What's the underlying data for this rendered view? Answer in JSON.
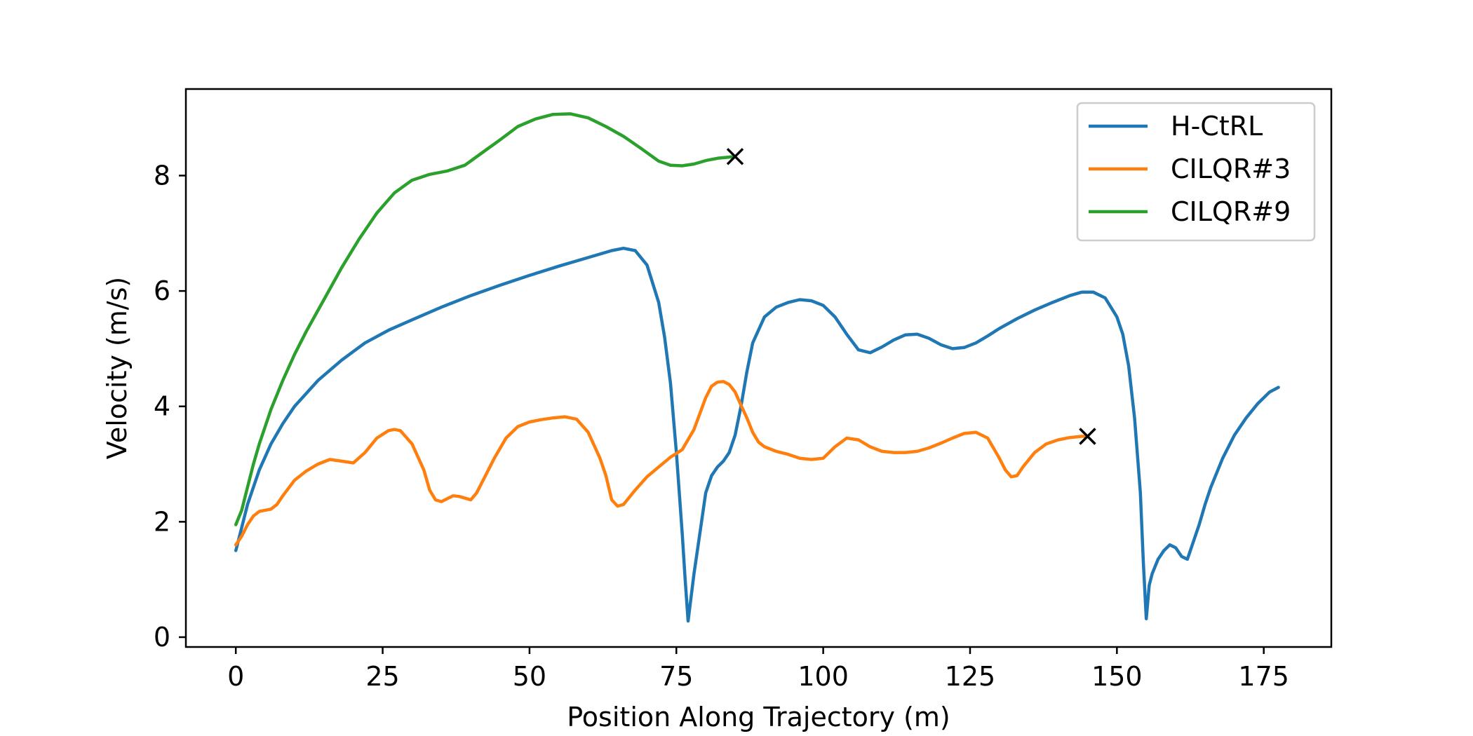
{
  "chart_data": {
    "type": "line",
    "title": "",
    "xlabel": "Position Along Trajectory (m)",
    "ylabel": "Velocity (m/s)",
    "xlim": [
      -8.5,
      186.5
    ],
    "ylim": [
      -0.17,
      9.5
    ],
    "xticks": [
      0,
      25,
      50,
      75,
      100,
      125,
      150,
      175
    ],
    "xtick_labels": [
      "0",
      "25",
      "50",
      "75",
      "100",
      "125",
      "150",
      "175"
    ],
    "yticks": [
      0,
      2,
      4,
      6,
      8
    ],
    "ytick_labels": [
      "0",
      "2",
      "4",
      "6",
      "8"
    ],
    "grid": false,
    "legend_position": "top-right",
    "series": [
      {
        "name": "H-CtRL",
        "color": "#1f77b4",
        "x": [
          0,
          1,
          2,
          4,
          6,
          8,
          10,
          14,
          18,
          22,
          26,
          30,
          35,
          40,
          45,
          50,
          55,
          60,
          64,
          66,
          68,
          70,
          72,
          73,
          74,
          75,
          76,
          76.5,
          77,
          78,
          79,
          80,
          81,
          82,
          83,
          84,
          85,
          86,
          87,
          88,
          90,
          92,
          94,
          96,
          98,
          100,
          102,
          104,
          106,
          108,
          110,
          112,
          114,
          116,
          118,
          120,
          122,
          124,
          126,
          128,
          130,
          133,
          136,
          139,
          142,
          144,
          146,
          148,
          150,
          151,
          152,
          153,
          154,
          154.5,
          155,
          155.5,
          156,
          157,
          158,
          159,
          160,
          161,
          162,
          163,
          164,
          165,
          166,
          168,
          170,
          172,
          174,
          176,
          177.5
        ],
        "y": [
          1.5,
          1.9,
          2.3,
          2.9,
          3.35,
          3.7,
          4.0,
          4.45,
          4.8,
          5.1,
          5.32,
          5.5,
          5.72,
          5.92,
          6.1,
          6.27,
          6.43,
          6.58,
          6.7,
          6.74,
          6.7,
          6.45,
          5.8,
          5.2,
          4.4,
          3.2,
          1.8,
          1.0,
          0.28,
          1.1,
          1.8,
          2.5,
          2.8,
          2.95,
          3.05,
          3.2,
          3.5,
          4.0,
          4.6,
          5.1,
          5.55,
          5.72,
          5.8,
          5.85,
          5.83,
          5.75,
          5.55,
          5.25,
          4.98,
          4.93,
          5.03,
          5.15,
          5.24,
          5.25,
          5.18,
          5.07,
          5.0,
          5.02,
          5.1,
          5.22,
          5.35,
          5.52,
          5.67,
          5.8,
          5.92,
          5.98,
          5.98,
          5.88,
          5.55,
          5.25,
          4.7,
          3.8,
          2.5,
          1.3,
          0.32,
          0.9,
          1.1,
          1.35,
          1.5,
          1.6,
          1.55,
          1.4,
          1.35,
          1.65,
          1.95,
          2.3,
          2.6,
          3.1,
          3.5,
          3.8,
          4.05,
          4.25,
          4.33
        ]
      },
      {
        "name": "CILQR#3",
        "color": "#ff7f0e",
        "x": [
          0,
          1,
          2,
          3,
          4,
          5,
          6,
          7,
          8,
          10,
          12,
          14,
          16,
          18,
          20,
          22,
          24,
          26,
          27,
          28,
          30,
          32,
          33,
          34,
          35,
          36,
          37,
          38,
          39,
          40,
          41,
          42,
          44,
          46,
          48,
          50,
          52,
          54,
          56,
          58,
          60,
          62,
          63,
          64,
          65,
          66,
          68,
          70,
          72,
          74,
          76,
          78,
          80,
          81,
          82,
          83,
          84,
          85,
          86,
          87,
          88,
          89,
          90,
          92,
          94,
          96,
          98,
          100,
          102,
          104,
          106,
          108,
          110,
          112,
          114,
          116,
          118,
          120,
          122,
          124,
          126,
          128,
          130,
          131,
          132,
          133,
          134,
          136,
          138,
          140,
          142,
          144,
          145
        ],
        "y": [
          1.6,
          1.75,
          1.95,
          2.1,
          2.18,
          2.2,
          2.22,
          2.3,
          2.45,
          2.72,
          2.88,
          3.0,
          3.08,
          3.05,
          3.02,
          3.2,
          3.45,
          3.58,
          3.6,
          3.58,
          3.35,
          2.9,
          2.55,
          2.38,
          2.35,
          2.4,
          2.45,
          2.44,
          2.41,
          2.38,
          2.5,
          2.7,
          3.1,
          3.45,
          3.65,
          3.73,
          3.77,
          3.8,
          3.82,
          3.78,
          3.55,
          3.1,
          2.8,
          2.38,
          2.27,
          2.3,
          2.55,
          2.78,
          2.95,
          3.12,
          3.25,
          3.6,
          4.15,
          4.35,
          4.42,
          4.43,
          4.38,
          4.25,
          4.02,
          3.8,
          3.55,
          3.38,
          3.3,
          3.22,
          3.17,
          3.1,
          3.08,
          3.1,
          3.3,
          3.45,
          3.42,
          3.3,
          3.22,
          3.2,
          3.2,
          3.22,
          3.28,
          3.36,
          3.45,
          3.53,
          3.55,
          3.45,
          3.1,
          2.9,
          2.78,
          2.8,
          2.95,
          3.2,
          3.35,
          3.42,
          3.46,
          3.48,
          3.48
        ]
      },
      {
        "name": "CILQR#9",
        "color": "#2ca02c",
        "x": [
          0,
          1,
          2,
          3,
          4,
          6,
          8,
          10,
          12,
          15,
          18,
          21,
          24,
          27,
          30,
          33,
          36,
          39,
          42,
          45,
          48,
          51,
          54,
          57,
          60,
          63,
          66,
          69,
          72,
          74,
          76,
          78,
          80,
          82,
          84,
          85
        ],
        "y": [
          1.95,
          2.2,
          2.6,
          3.0,
          3.35,
          3.95,
          4.45,
          4.9,
          5.3,
          5.85,
          6.4,
          6.9,
          7.35,
          7.7,
          7.92,
          8.02,
          8.08,
          8.18,
          8.4,
          8.62,
          8.85,
          8.98,
          9.06,
          9.07,
          9.0,
          8.85,
          8.68,
          8.47,
          8.25,
          8.18,
          8.17,
          8.2,
          8.26,
          8.3,
          8.32,
          8.33
        ]
      }
    ],
    "end_markers": [
      {
        "series": "CILQR#9",
        "x": 85,
        "y": 8.33,
        "symbol": "x"
      },
      {
        "series": "CILQR#3",
        "x": 145,
        "y": 3.48,
        "symbol": "x"
      }
    ]
  }
}
